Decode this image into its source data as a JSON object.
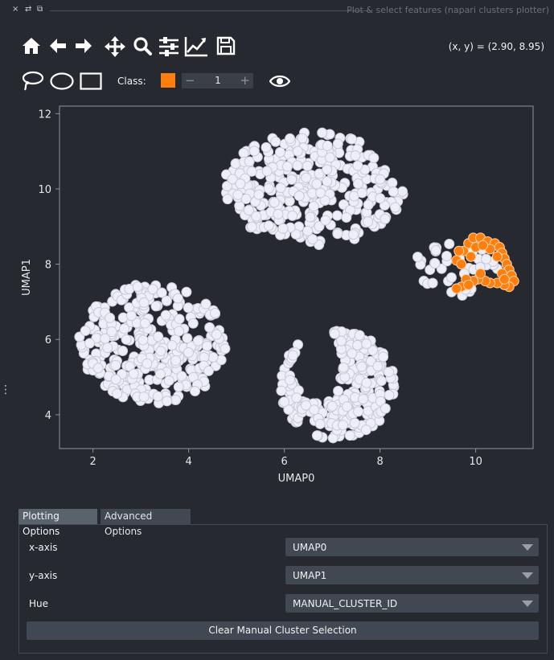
{
  "window": {
    "title": "Plot & select features (napari clusters plotter)",
    "close_icon": "×",
    "float_icon": "⧉",
    "pin_icon": "⇄"
  },
  "toolbar": {
    "coords_readout": "(x, y) = (2.90, 8.95)",
    "tools": [
      "home-icon",
      "back-arrow-icon",
      "forward-arrow-icon",
      "pan-icon",
      "zoom-icon",
      "configure-subplots-icon",
      "edit-axis-icon",
      "save-icon"
    ],
    "selection_tools": [
      "lasso-icon",
      "ellipse-select-icon",
      "rectangle-select-icon"
    ],
    "class_label": "Class:",
    "class_value": "1",
    "class_color": "#ff7f0e",
    "spin_minus": "−",
    "spin_plus": "+"
  },
  "chart_data": {
    "type": "scatter",
    "xlabel": "UMAP0",
    "ylabel": "UMAP1",
    "xlim": [
      1.3,
      11.2
    ],
    "ylim": [
      3.1,
      12.2
    ],
    "xticks": [
      2,
      4,
      6,
      8,
      10
    ],
    "yticks": [
      4,
      6,
      8,
      10,
      12
    ],
    "background": "#262930",
    "axis_color": "#8f949c",
    "series": [
      {
        "color": "#eeeef8",
        "edge": "#c8c9d6",
        "clusters": [
          {
            "cx": 3.3,
            "cy": 5.9,
            "rx": 1.6,
            "ry": 1.6,
            "n": 330
          },
          {
            "cx": 6.6,
            "cy": 10.0,
            "rx": 1.9,
            "ry": 1.5,
            "n": 320
          },
          {
            "cx": 7.1,
            "cy": 4.8,
            "rx": 1.2,
            "ry": 1.45,
            "n": 260
          },
          {
            "cx": 9.6,
            "cy": 7.9,
            "rx": 0.9,
            "ry": 0.75,
            "n": 40
          }
        ]
      },
      {
        "color": "#ff7f0e",
        "edge": "#ffd4a8",
        "points": [
          [
            9.6,
            8.1
          ],
          [
            9.75,
            8.35
          ],
          [
            9.85,
            8.55
          ],
          [
            9.95,
            8.7
          ],
          [
            10.1,
            8.7
          ],
          [
            10.25,
            8.6
          ],
          [
            10.4,
            8.55
          ],
          [
            10.5,
            8.45
          ],
          [
            10.55,
            8.3
          ],
          [
            10.6,
            8.15
          ],
          [
            10.65,
            8.0
          ],
          [
            10.7,
            7.85
          ],
          [
            10.75,
            7.7
          ],
          [
            10.8,
            7.55
          ],
          [
            10.7,
            7.4
          ],
          [
            10.6,
            7.45
          ],
          [
            10.45,
            7.5
          ],
          [
            10.3,
            7.5
          ],
          [
            10.2,
            7.55
          ],
          [
            10.05,
            7.6
          ],
          [
            9.95,
            7.55
          ],
          [
            9.8,
            7.6
          ],
          [
            9.7,
            7.4
          ],
          [
            9.6,
            7.35
          ],
          [
            9.7,
            8.0
          ],
          [
            9.9,
            8.2
          ],
          [
            10.0,
            8.45
          ],
          [
            10.3,
            8.4
          ],
          [
            10.45,
            8.2
          ],
          [
            10.1,
            7.75
          ],
          [
            9.85,
            7.45
          ],
          [
            10.55,
            7.75
          ],
          [
            10.6,
            7.6
          ],
          [
            10.15,
            8.5
          ],
          [
            9.65,
            8.35
          ]
        ]
      }
    ]
  },
  "tabs": [
    {
      "label": "Plotting Options",
      "active": true
    },
    {
      "label": "Advanced Options",
      "active": false
    }
  ],
  "options": {
    "x_axis_label": "x-axis",
    "x_axis_value": "UMAP0",
    "y_axis_label": "y-axis",
    "y_axis_value": "UMAP1",
    "hue_label": "Hue",
    "hue_value": "MANUAL_CLUSTER_ID",
    "clear_button": "Clear Manual Cluster Selection"
  },
  "side_handle": "⋮"
}
